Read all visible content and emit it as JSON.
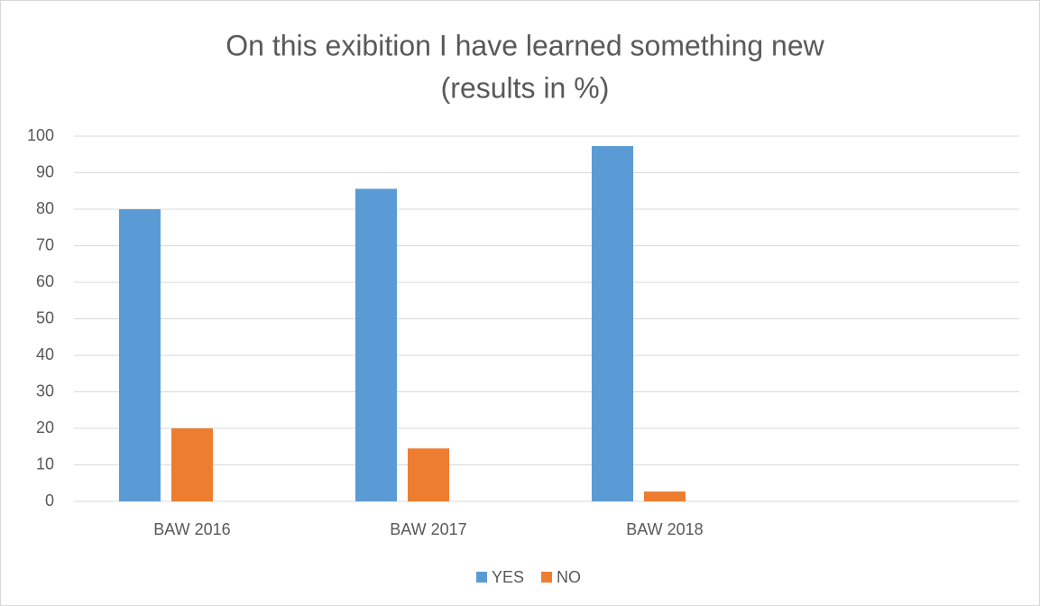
{
  "chart_data": {
    "type": "bar",
    "title": "On this exibition I have learned something new",
    "subtitle": "(results in %)",
    "categories": [
      "BAW 2016",
      "BAW 2017",
      "BAW 2018",
      null
    ],
    "series": [
      {
        "name": "YES",
        "color": "#5b9bd5",
        "values": [
          80,
          85.6,
          97.3,
          null
        ]
      },
      {
        "name": "NO",
        "color": "#ed7d31",
        "values": [
          20,
          14.5,
          2.7,
          null
        ]
      }
    ],
    "ylim": [
      0,
      100
    ],
    "yticks": [
      0,
      10,
      20,
      30,
      40,
      50,
      60,
      70,
      80,
      90,
      100
    ],
    "grid": true,
    "legend": "bottom"
  }
}
